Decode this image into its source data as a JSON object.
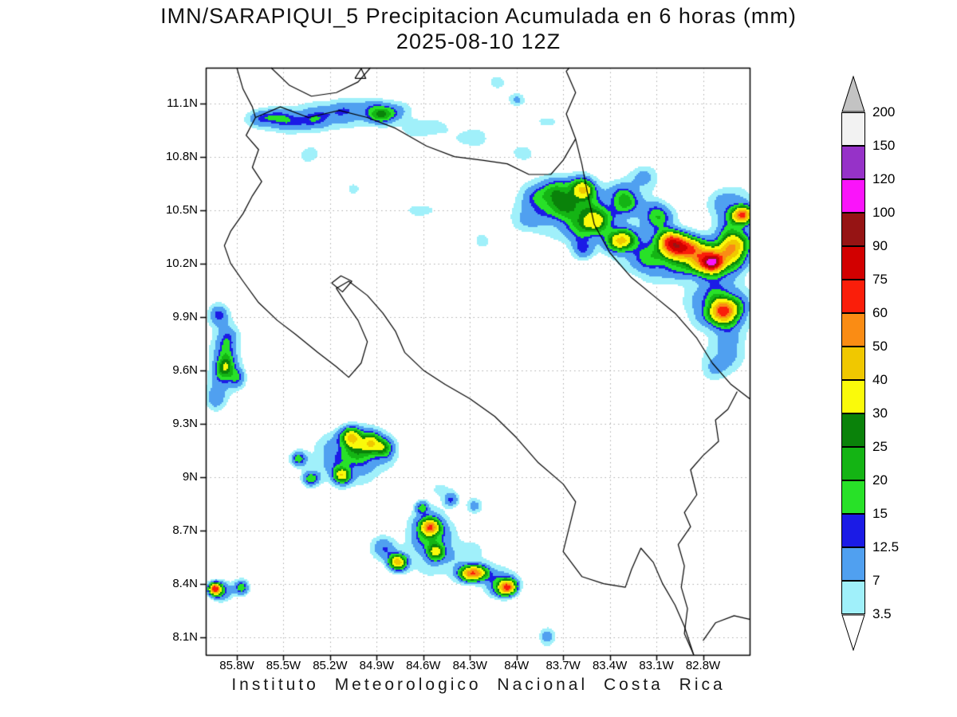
{
  "title": {
    "line1": "IMN/SARAPIQUI_5 Precipitacion Acumulada en 6 horas (mm)",
    "line2": "2025-08-10 12Z"
  },
  "caption": "Instituto Meteorologico Nacional Costa Rica",
  "map": {
    "extent": {
      "lon_west": 86.0,
      "lon_east": 82.5,
      "lat_south": 8.0,
      "lat_north": 11.3
    },
    "grid_color": "#ababab",
    "outline_color": "#000000",
    "lat_ticks": [
      {
        "value": 11.1,
        "label": "11.1N"
      },
      {
        "value": 10.8,
        "label": "10.8N"
      },
      {
        "value": 10.5,
        "label": "10.5N"
      },
      {
        "value": 10.2,
        "label": "10.2N"
      },
      {
        "value": 9.9,
        "label": "9.9N"
      },
      {
        "value": 9.6,
        "label": "9.6N"
      },
      {
        "value": 9.3,
        "label": "9.3N"
      },
      {
        "value": 9.0,
        "label": "9N"
      },
      {
        "value": 8.7,
        "label": "8.7N"
      },
      {
        "value": 8.4,
        "label": "8.4N"
      },
      {
        "value": 8.1,
        "label": "8.1N"
      }
    ],
    "lon_ticks": [
      {
        "value": 85.8,
        "label": "85.8W"
      },
      {
        "value": 85.5,
        "label": "85.5W"
      },
      {
        "value": 85.2,
        "label": "85.2W"
      },
      {
        "value": 84.9,
        "label": "84.9W"
      },
      {
        "value": 84.6,
        "label": "84.6W"
      },
      {
        "value": 84.3,
        "label": "84.3W"
      },
      {
        "value": 84.0,
        "label": "84W"
      },
      {
        "value": 83.7,
        "label": "83.7W"
      },
      {
        "value": 83.4,
        "label": "83.4W"
      },
      {
        "value": 83.1,
        "label": "83.1W"
      },
      {
        "value": 82.8,
        "label": "82.8W"
      }
    ],
    "outlines": [
      {
        "name": "pacific-coast-costa-rica",
        "points": [
          [
            85.8,
            11.3
          ],
          [
            85.76,
            11.18
          ],
          [
            85.7,
            11.08
          ],
          [
            85.68,
            11.02
          ],
          [
            85.74,
            10.92
          ],
          [
            85.66,
            10.84
          ],
          [
            85.7,
            10.74
          ],
          [
            85.64,
            10.66
          ],
          [
            85.7,
            10.58
          ],
          [
            85.76,
            10.48
          ],
          [
            85.84,
            10.38
          ],
          [
            85.88,
            10.3
          ],
          [
            85.84,
            10.2
          ],
          [
            85.76,
            10.1
          ],
          [
            85.66,
            9.98
          ],
          [
            85.54,
            9.88
          ],
          [
            85.42,
            9.8
          ],
          [
            85.28,
            9.7
          ],
          [
            85.16,
            9.62
          ],
          [
            85.08,
            9.56
          ],
          [
            85.0,
            9.64
          ],
          [
            84.96,
            9.76
          ],
          [
            85.02,
            9.88
          ],
          [
            85.1,
            9.98
          ],
          [
            85.16,
            10.06
          ],
          [
            85.08,
            10.1
          ],
          [
            84.96,
            10.02
          ],
          [
            84.86,
            9.92
          ],
          [
            84.78,
            9.82
          ],
          [
            84.72,
            9.7
          ],
          [
            84.6,
            9.6
          ],
          [
            84.46,
            9.52
          ],
          [
            84.3,
            9.44
          ],
          [
            84.14,
            9.34
          ],
          [
            84.0,
            9.22
          ],
          [
            83.86,
            9.08
          ],
          [
            83.7,
            8.96
          ],
          [
            83.62,
            8.86
          ],
          [
            83.66,
            8.72
          ],
          [
            83.7,
            8.58
          ],
          [
            83.58,
            8.44
          ],
          [
            83.44,
            8.4
          ],
          [
            83.3,
            8.38
          ],
          [
            83.26,
            8.48
          ],
          [
            83.2,
            8.6
          ],
          [
            83.12,
            8.52
          ],
          [
            83.06,
            8.4
          ],
          [
            82.98,
            8.28
          ],
          [
            82.92,
            8.16
          ],
          [
            82.86,
            8.0
          ]
        ]
      },
      {
        "name": "nicaragua-border-and-caribbean-coast",
        "points": [
          [
            85.68,
            11.02
          ],
          [
            85.52,
            11.08
          ],
          [
            85.34,
            11.02
          ],
          [
            85.14,
            11.06
          ],
          [
            84.96,
            11.02
          ],
          [
            84.78,
            10.96
          ],
          [
            84.58,
            10.86
          ],
          [
            84.4,
            10.8
          ],
          [
            84.22,
            10.78
          ],
          [
            84.06,
            10.76
          ],
          [
            83.92,
            10.7
          ],
          [
            83.78,
            10.7
          ],
          [
            83.7,
            10.78
          ],
          [
            83.62,
            10.9
          ],
          [
            83.58,
            10.76
          ],
          [
            83.54,
            10.58
          ],
          [
            83.5,
            10.42
          ],
          [
            83.4,
            10.26
          ],
          [
            83.26,
            10.12
          ],
          [
            83.12,
            10.02
          ],
          [
            82.98,
            9.92
          ],
          [
            82.84,
            9.78
          ],
          [
            82.74,
            9.64
          ],
          [
            82.62,
            9.52
          ],
          [
            82.5,
            9.44
          ]
        ]
      },
      {
        "name": "panama-border",
        "points": [
          [
            82.58,
            9.48
          ],
          [
            82.64,
            9.38
          ],
          [
            82.72,
            9.32
          ],
          [
            82.7,
            9.2
          ],
          [
            82.8,
            9.12
          ],
          [
            82.88,
            9.04
          ],
          [
            82.84,
            8.9
          ],
          [
            82.92,
            8.8
          ],
          [
            82.88,
            8.72
          ],
          [
            82.96,
            8.62
          ],
          [
            82.92,
            8.5
          ],
          [
            82.94,
            8.38
          ],
          [
            82.9,
            8.26
          ],
          [
            82.92,
            8.12
          ],
          [
            82.86,
            8.0
          ]
        ]
      },
      {
        "name": "lake-nicaragua-shore",
        "points": [
          [
            85.58,
            11.3
          ],
          [
            85.46,
            11.2
          ],
          [
            85.32,
            11.14
          ],
          [
            85.16,
            11.16
          ],
          [
            85.02,
            11.22
          ],
          [
            84.94,
            11.3
          ]
        ]
      },
      {
        "name": "lake-island",
        "points": [
          [
            85.04,
            11.24
          ],
          [
            85.0,
            11.295
          ],
          [
            84.97,
            11.24
          ],
          [
            85.04,
            11.24
          ]
        ]
      },
      {
        "name": "chira-island",
        "points": [
          [
            85.19,
            10.09
          ],
          [
            85.13,
            10.13
          ],
          [
            85.06,
            10.1
          ],
          [
            85.12,
            10.04
          ],
          [
            85.19,
            10.09
          ]
        ]
      },
      {
        "name": "nicaragua-caribbean-coast",
        "points": [
          [
            83.62,
            10.9
          ],
          [
            83.68,
            11.04
          ],
          [
            83.62,
            11.16
          ],
          [
            83.68,
            11.28
          ],
          [
            83.66,
            11.3
          ]
        ]
      },
      {
        "name": "panama-pacific-coast",
        "points": [
          [
            82.8,
            8.08
          ],
          [
            82.72,
            8.18
          ],
          [
            82.6,
            8.22
          ],
          [
            82.5,
            8.2
          ]
        ]
      }
    ]
  },
  "legend": {
    "unit": "mm",
    "levels": [
      "200",
      "150",
      "120",
      "100",
      "90",
      "75",
      "60",
      "50",
      "40",
      "30",
      "25",
      "20",
      "15",
      "12.5",
      "7",
      "3.5"
    ],
    "band_colors_low_to_high": [
      "#a0f0fa",
      "#50a0f0",
      "#1b1be6",
      "#28e128",
      "#14b414",
      "#0a820a",
      "#fafa0a",
      "#f0c800",
      "#fa8c14",
      "#fa1e0a",
      "#d20000",
      "#961414",
      "#fa14fa",
      "#9632c8",
      "#f2f2f2"
    ],
    "over_color": "#c3c3c3",
    "under_color": "#ffffff"
  },
  "chart_data": {
    "type": "heatmap",
    "quantity": "6-hour accumulated precipitation",
    "unit": "mm",
    "levels_mm": [
      3.5,
      7,
      12.5,
      15,
      20,
      25,
      30,
      40,
      50,
      60,
      75,
      90,
      100,
      120,
      150,
      200
    ],
    "lon_range_west": [
      86.0,
      82.5
    ],
    "lat_range_north": [
      8.0,
      11.3
    ],
    "cell_format": "[lon_west_deg, lat_north_deg, peak_mm, radius_lon_deg, radius_lat_deg]",
    "cells": [
      [
        85.45,
        11.0,
        11,
        0.22,
        0.06
      ],
      [
        85.6,
        11.02,
        9,
        0.12,
        0.05
      ],
      [
        85.2,
        11.02,
        7,
        0.25,
        0.07
      ],
      [
        84.86,
        11.04,
        19,
        0.1,
        0.05
      ],
      [
        84.6,
        10.96,
        6,
        0.18,
        0.06
      ],
      [
        85.0,
        11.07,
        8,
        0.3,
        0.06
      ],
      [
        85.33,
        10.81,
        5,
        0.08,
        0.07
      ],
      [
        85.05,
        10.62,
        4.5,
        0.06,
        0.05
      ],
      [
        84.28,
        10.9,
        5,
        0.14,
        0.07
      ],
      [
        84.0,
        11.12,
        10,
        0.05,
        0.035
      ],
      [
        84.12,
        11.22,
        5,
        0.08,
        0.05
      ],
      [
        83.95,
        10.82,
        5,
        0.1,
        0.06
      ],
      [
        83.8,
        11.0,
        4.5,
        0.1,
        0.05
      ],
      [
        83.75,
        10.57,
        20,
        0.16,
        0.09
      ],
      [
        83.58,
        10.62,
        34,
        0.07,
        0.05
      ],
      [
        83.52,
        10.44,
        27,
        0.12,
        0.08
      ],
      [
        83.62,
        10.5,
        12,
        0.3,
        0.16
      ],
      [
        83.3,
        10.56,
        20,
        0.09,
        0.07
      ],
      [
        83.33,
        10.33,
        40,
        0.08,
        0.06
      ],
      [
        83.1,
        10.47,
        18,
        0.1,
        0.07
      ],
      [
        83.0,
        10.33,
        50,
        0.08,
        0.05
      ],
      [
        83.05,
        10.25,
        22,
        0.22,
        0.12
      ],
      [
        82.76,
        10.22,
        55,
        0.13,
        0.08
      ],
      [
        82.73,
        10.2,
        55,
        0.055,
        0.04
      ],
      [
        82.92,
        10.28,
        60,
        0.09,
        0.05
      ],
      [
        82.6,
        10.3,
        40,
        0.1,
        0.1
      ],
      [
        82.55,
        10.47,
        55,
        0.06,
        0.045
      ],
      [
        82.62,
        10.52,
        12,
        0.14,
        0.1
      ],
      [
        82.66,
        9.93,
        46,
        0.09,
        0.07
      ],
      [
        82.7,
        9.97,
        18,
        0.17,
        0.13
      ],
      [
        82.63,
        9.73,
        8,
        0.12,
        0.12
      ],
      [
        82.72,
        9.62,
        7,
        0.1,
        0.08
      ],
      [
        83.57,
        10.29,
        13,
        0.07,
        0.06
      ],
      [
        83.95,
        10.45,
        6,
        0.08,
        0.06
      ],
      [
        84.22,
        10.33,
        5,
        0.06,
        0.05
      ],
      [
        83.18,
        10.68,
        8,
        0.1,
        0.07
      ],
      [
        84.62,
        10.5,
        5,
        0.12,
        0.05
      ],
      [
        85.92,
        9.91,
        11,
        0.06,
        0.06
      ],
      [
        85.86,
        9.77,
        8,
        0.07,
        0.09
      ],
      [
        85.88,
        9.62,
        26,
        0.055,
        0.09
      ],
      [
        85.8,
        9.56,
        13,
        0.05,
        0.05
      ],
      [
        85.94,
        9.45,
        9,
        0.06,
        0.07
      ],
      [
        85.88,
        9.66,
        5,
        0.13,
        0.25
      ],
      [
        85.06,
        9.22,
        32,
        0.065,
        0.05
      ],
      [
        84.94,
        9.2,
        28,
        0.05,
        0.05
      ],
      [
        84.86,
        9.16,
        18,
        0.06,
        0.05
      ],
      [
        85.0,
        9.16,
        16,
        0.18,
        0.1
      ],
      [
        85.12,
        9.01,
        38,
        0.05,
        0.04
      ],
      [
        85.4,
        9.1,
        16,
        0.05,
        0.04
      ],
      [
        85.32,
        8.99,
        17,
        0.05,
        0.04
      ],
      [
        85.1,
        9.08,
        8,
        0.22,
        0.14
      ],
      [
        84.56,
        8.72,
        55,
        0.05,
        0.04
      ],
      [
        84.56,
        8.7,
        18,
        0.11,
        0.1
      ],
      [
        84.52,
        8.58,
        34,
        0.05,
        0.045
      ],
      [
        84.76,
        8.52,
        45,
        0.055,
        0.04
      ],
      [
        84.86,
        8.6,
        12,
        0.08,
        0.06
      ],
      [
        84.28,
        8.46,
        60,
        0.075,
        0.04
      ],
      [
        84.06,
        8.38,
        55,
        0.05,
        0.04
      ],
      [
        84.1,
        8.4,
        16,
        0.1,
        0.07
      ],
      [
        84.45,
        8.55,
        6,
        0.3,
        0.15
      ],
      [
        84.42,
        8.87,
        13,
        0.045,
        0.04
      ],
      [
        84.27,
        8.84,
        10,
        0.05,
        0.04
      ],
      [
        84.61,
        8.83,
        17,
        0.04,
        0.035
      ],
      [
        84.48,
        8.93,
        5,
        0.08,
        0.05
      ],
      [
        83.8,
        8.1,
        10,
        0.05,
        0.05
      ],
      [
        85.94,
        8.37,
        60,
        0.035,
        0.03
      ],
      [
        85.9,
        8.36,
        18,
        0.07,
        0.05
      ],
      [
        85.77,
        8.38,
        18,
        0.045,
        0.04
      ]
    ]
  }
}
